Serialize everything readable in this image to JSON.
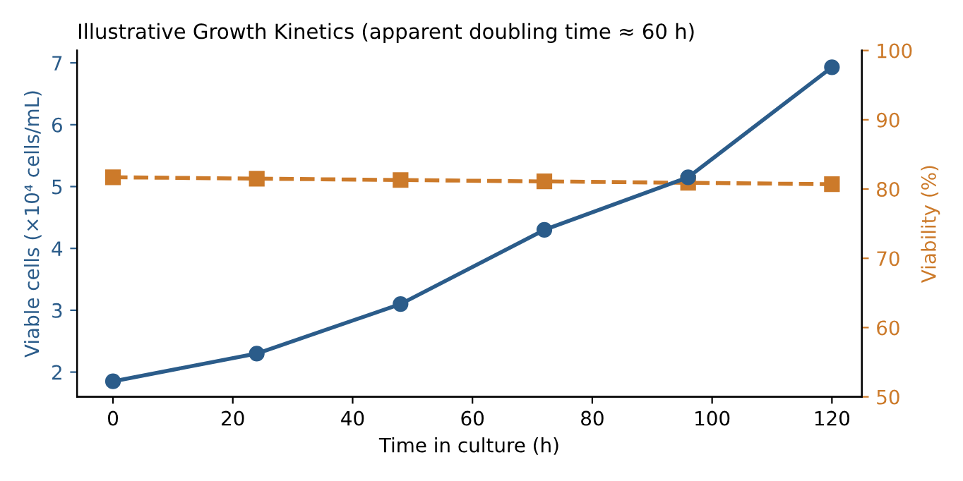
{
  "chart_data": {
    "type": "line",
    "title": "Illustrative Growth Kinetics (apparent doubling time ≈ 60 h)",
    "xlabel": "Time in culture (h)",
    "ylabel": "Viable cells (×10⁴ cells/mL)",
    "y2label": "Viability (%)",
    "x": [
      0,
      24,
      48,
      72,
      96,
      120
    ],
    "series": [
      {
        "color": "#2b5c8a",
        "values": [
          1.85,
          2.3,
          3.1,
          4.3,
          5.15,
          6.93
        ],
        "marker": "circle",
        "line_style": "solid"
      },
      {
        "color": "#cc7a2a",
        "values": [
          81.7,
          81.5,
          81.3,
          81.1,
          80.9,
          80.7
        ],
        "axis": "y2",
        "marker": "square",
        "line_style": "dashed"
      }
    ],
    "xlim": [
      -6,
      125
    ],
    "xticks": [
      0,
      20,
      40,
      60,
      80,
      100,
      120
    ],
    "ylim": [
      1.6,
      7.2
    ],
    "yticks": [
      2,
      3,
      4,
      5,
      6,
      7
    ],
    "y2lim": [
      50,
      100
    ],
    "y2ticks": [
      50,
      60,
      70,
      80,
      90,
      100
    ],
    "grid": false,
    "legend": false
  }
}
